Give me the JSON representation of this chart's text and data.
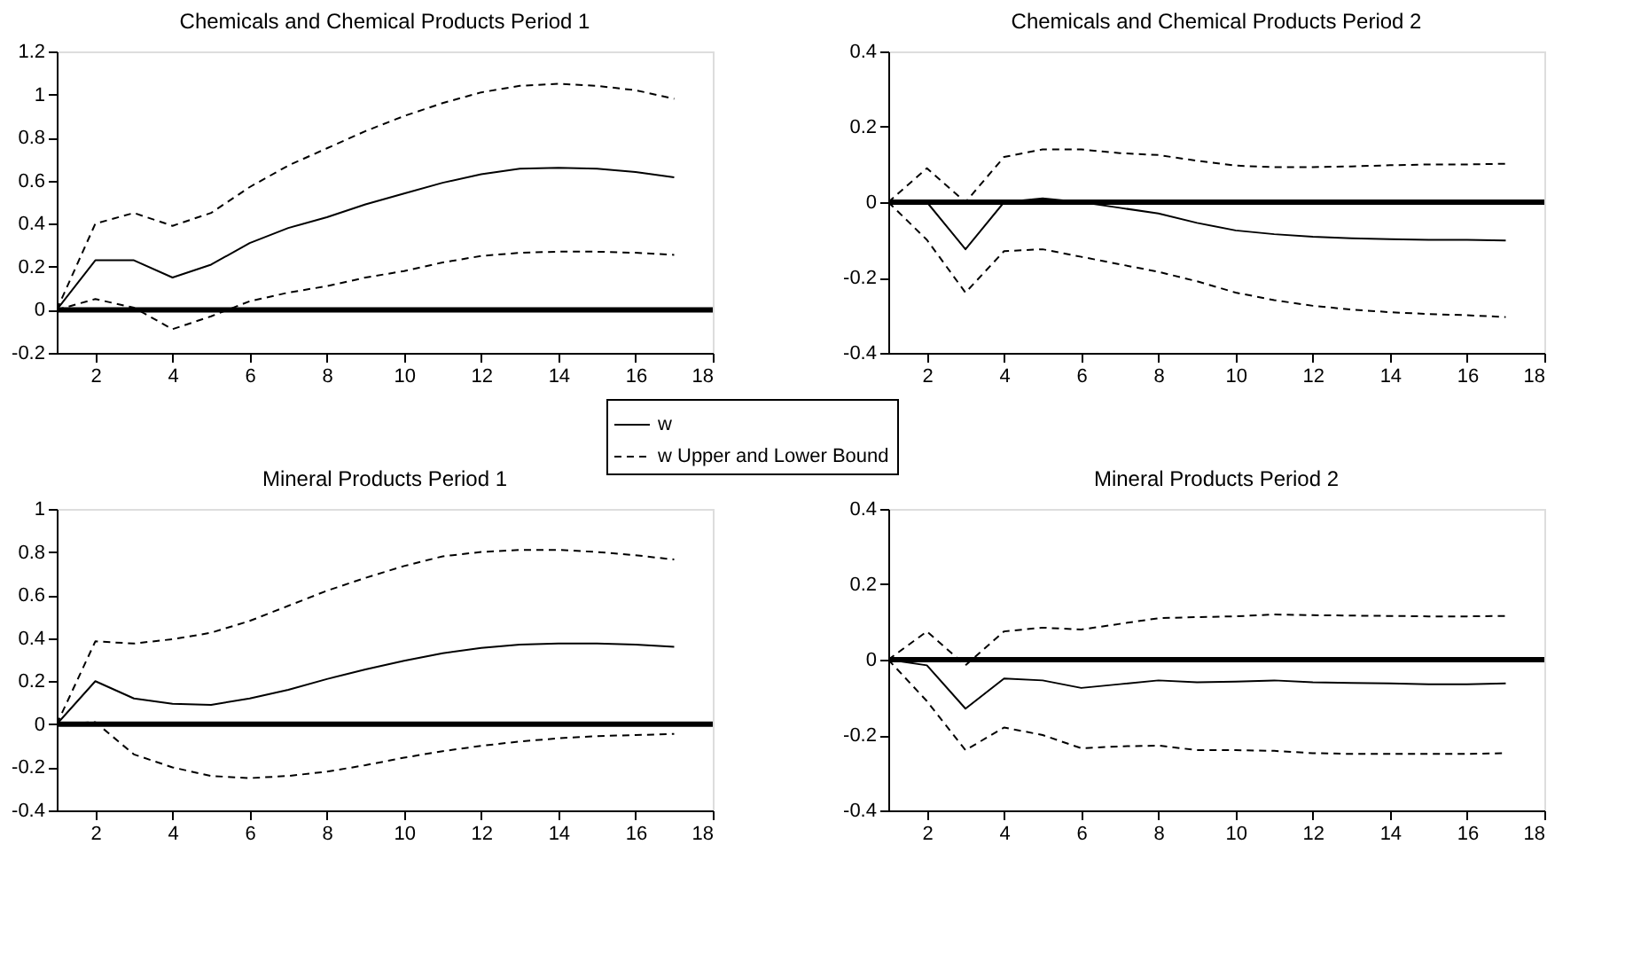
{
  "chart_data": [
    {
      "type": "line",
      "title": "Chemicals and Chemical Products Period 1",
      "x": [
        1,
        2,
        3,
        4,
        5,
        6,
        7,
        8,
        9,
        10,
        11,
        12,
        13,
        14,
        15,
        16,
        17
      ],
      "xlim": [
        1,
        18
      ],
      "xticks": [
        2,
        4,
        6,
        8,
        10,
        12,
        14,
        16,
        18
      ],
      "ylim": [
        -0.2,
        1.2
      ],
      "yticks": [
        -0.2,
        0,
        0.2,
        0.4,
        0.6,
        0.8,
        1,
        1.2
      ],
      "grid": false,
      "legend": "bottom right",
      "ref_lines": [
        {
          "axis": "y",
          "value": 0,
          "color": "#000000"
        }
      ],
      "series": [
        {
          "name": "w",
          "color": "#000000",
          "line_style": "solid",
          "values": [
            0,
            0.23,
            0.23,
            0.15,
            0.21,
            0.31,
            0.38,
            0.43,
            0.49,
            0.54,
            0.59,
            0.63,
            0.655,
            0.66,
            0.655,
            0.64,
            0.615
          ]
        },
        {
          "name": "w Upper and Lower Bound",
          "color": "#000000",
          "line_style": "dashed",
          "values": [
            0,
            0.4,
            0.45,
            0.39,
            0.45,
            0.57,
            0.67,
            0.75,
            0.83,
            0.9,
            0.96,
            1.01,
            1.04,
            1.05,
            1.04,
            1.02,
            0.98
          ]
        },
        {
          "color": "#000000",
          "line_style": "dashed",
          "values": [
            0,
            0.05,
            0.01,
            -0.09,
            -0.03,
            0.04,
            0.08,
            0.11,
            0.15,
            0.18,
            0.22,
            0.25,
            0.265,
            0.27,
            0.27,
            0.265,
            0.255
          ]
        }
      ]
    },
    {
      "type": "line",
      "title": "Chemicals and Chemical Products Period 2",
      "x": [
        1,
        2,
        3,
        4,
        5,
        6,
        7,
        8,
        9,
        10,
        11,
        12,
        13,
        14,
        15,
        16,
        17
      ],
      "xlim": [
        1,
        18
      ],
      "xticks": [
        2,
        4,
        6,
        8,
        10,
        12,
        14,
        16,
        18
      ],
      "ylim": [
        -0.4,
        0.4
      ],
      "yticks": [
        -0.4,
        -0.2,
        0,
        0.2,
        0.4
      ],
      "grid": false,
      "ref_lines": [
        {
          "axis": "y",
          "value": 0,
          "color": "#000000"
        }
      ],
      "series": [
        {
          "color": "#000000",
          "line_style": "solid",
          "values": [
            0,
            0,
            -0.125,
            0,
            0.01,
            0,
            -0.015,
            -0.03,
            -0.055,
            -0.075,
            -0.085,
            -0.092,
            -0.096,
            -0.098,
            -0.1,
            -0.1,
            -0.102
          ]
        },
        {
          "color": "#000000",
          "line_style": "dashed",
          "values": [
            0,
            0.09,
            0,
            0.12,
            0.14,
            0.14,
            0.13,
            0.125,
            0.11,
            0.097,
            0.093,
            0.093,
            0.095,
            0.098,
            0.1,
            0.1,
            0.102
          ]
        },
        {
          "color": "#000000",
          "line_style": "dashed",
          "values": [
            0,
            -0.1,
            -0.24,
            -0.13,
            -0.125,
            -0.145,
            -0.165,
            -0.185,
            -0.21,
            -0.24,
            -0.26,
            -0.275,
            -0.285,
            -0.292,
            -0.297,
            -0.3,
            -0.305
          ]
        }
      ]
    },
    {
      "type": "line",
      "title": "Mineral Products Period 1",
      "x": [
        1,
        2,
        3,
        4,
        5,
        6,
        7,
        8,
        9,
        10,
        11,
        12,
        13,
        14,
        15,
        16,
        17
      ],
      "xlim": [
        1,
        18
      ],
      "xticks": [
        2,
        4,
        6,
        8,
        10,
        12,
        14,
        16,
        18
      ],
      "ylim": [
        -0.4,
        1
      ],
      "yticks": [
        -0.4,
        -0.2,
        0,
        0.2,
        0.4,
        0.6,
        0.8,
        1
      ],
      "grid": false,
      "ref_lines": [
        {
          "axis": "y",
          "value": 0,
          "color": "#000000"
        }
      ],
      "series": [
        {
          "color": "#000000",
          "line_style": "solid",
          "values": [
            0,
            0.2,
            0.12,
            0.095,
            0.09,
            0.12,
            0.16,
            0.21,
            0.255,
            0.295,
            0.33,
            0.355,
            0.37,
            0.375,
            0.375,
            0.37,
            0.36
          ]
        },
        {
          "color": "#000000",
          "line_style": "dashed",
          "values": [
            0,
            0.385,
            0.375,
            0.395,
            0.425,
            0.48,
            0.55,
            0.62,
            0.68,
            0.735,
            0.78,
            0.8,
            0.81,
            0.81,
            0.8,
            0.785,
            0.765
          ]
        },
        {
          "color": "#000000",
          "line_style": "dashed",
          "values": [
            0,
            0.01,
            -0.14,
            -0.2,
            -0.24,
            -0.25,
            -0.24,
            -0.22,
            -0.19,
            -0.155,
            -0.125,
            -0.1,
            -0.08,
            -0.065,
            -0.055,
            -0.05,
            -0.045
          ]
        }
      ]
    },
    {
      "type": "line",
      "title": "Mineral Products Period 2",
      "x": [
        1,
        2,
        3,
        4,
        5,
        6,
        7,
        8,
        9,
        10,
        11,
        12,
        13,
        14,
        15,
        16,
        17
      ],
      "xlim": [
        1,
        18
      ],
      "xticks": [
        2,
        4,
        6,
        8,
        10,
        12,
        14,
        16,
        18
      ],
      "ylim": [
        -0.4,
        0.4
      ],
      "yticks": [
        -0.4,
        -0.2,
        0,
        0.2,
        0.4
      ],
      "grid": false,
      "ref_lines": [
        {
          "axis": "y",
          "value": 0,
          "color": "#000000"
        }
      ],
      "series": [
        {
          "color": "#000000",
          "line_style": "solid",
          "values": [
            0,
            -0.015,
            -0.13,
            -0.05,
            -0.055,
            -0.075,
            -0.065,
            -0.055,
            -0.06,
            -0.058,
            -0.055,
            -0.06,
            -0.062,
            -0.063,
            -0.065,
            -0.065,
            -0.063
          ]
        },
        {
          "color": "#000000",
          "line_style": "dashed",
          "values": [
            0,
            0.075,
            -0.015,
            0.075,
            0.085,
            0.08,
            0.095,
            0.11,
            0.113,
            0.115,
            0.12,
            0.118,
            0.117,
            0.116,
            0.115,
            0.115,
            0.116
          ]
        },
        {
          "color": "#000000",
          "line_style": "dashed",
          "values": [
            0,
            -0.11,
            -0.24,
            -0.18,
            -0.2,
            -0.235,
            -0.23,
            -0.228,
            -0.24,
            -0.24,
            -0.242,
            -0.248,
            -0.25,
            -0.25,
            -0.25,
            -0.25,
            -0.248
          ]
        }
      ]
    }
  ]
}
